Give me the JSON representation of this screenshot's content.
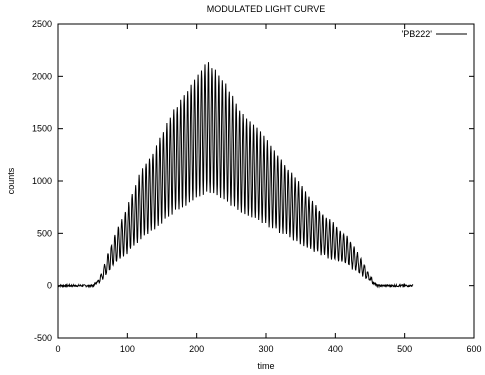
{
  "chart_data": {
    "type": "line",
    "title": "MODULATED LIGHT CURVE",
    "xlabel": "time",
    "ylabel": "counts",
    "xlim": [
      0,
      600
    ],
    "ylim": [
      -500,
      2500
    ],
    "xticks": [
      "0",
      "100",
      "200",
      "300",
      "400",
      "500",
      "600"
    ],
    "yticks": [
      "-500",
      "0",
      "500",
      "1000",
      "1500",
      "2000",
      "2500"
    ],
    "grid": false,
    "legend_position": "top-right",
    "series": [
      {
        "name": "'PB222'",
        "color": "#000000",
        "description_points": [
          {
            "x": 0,
            "y": 0
          },
          {
            "x": 50,
            "y": 0
          },
          {
            "x": 60,
            "y": 80
          },
          {
            "x": 80,
            "y": 450
          },
          {
            "x": 100,
            "y": 750
          },
          {
            "x": 120,
            "y": 1100
          },
          {
            "x": 140,
            "y": 1300
          },
          {
            "x": 160,
            "y": 1600
          },
          {
            "x": 180,
            "y": 1800
          },
          {
            "x": 200,
            "y": 2000
          },
          {
            "x": 215,
            "y": 2150
          },
          {
            "x": 240,
            "y": 1950
          },
          {
            "x": 260,
            "y": 1700
          },
          {
            "x": 300,
            "y": 1400
          },
          {
            "x": 340,
            "y": 1050
          },
          {
            "x": 380,
            "y": 700
          },
          {
            "x": 420,
            "y": 450
          },
          {
            "x": 450,
            "y": 100
          },
          {
            "x": 460,
            "y": 0
          },
          {
            "x": 510,
            "y": 0
          }
        ],
        "envelope_peak": {
          "x": 215,
          "y": 2150
        },
        "trough_ratio": 0.42,
        "oscillation_period": 5,
        "start_x": 0,
        "end_x": 512,
        "rise_start_x": 52,
        "fall_end_x": 460
      }
    ]
  }
}
